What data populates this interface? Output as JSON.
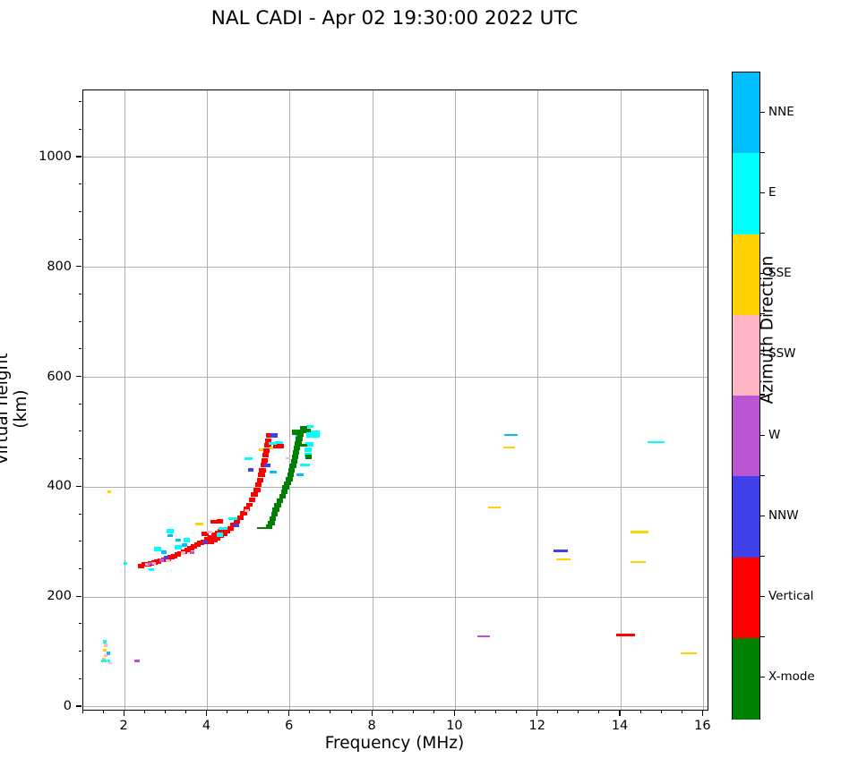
{
  "title": "NAL CADI - Apr 02 19:30:00 2022 UTC",
  "chart_data": {
    "type": "scatter",
    "title": "NAL CADI - Apr 02 19:30:00 2022 UTC",
    "xlabel": "Frequency (MHz)",
    "ylabel": "Virtual height (km)",
    "xlim": [
      1.0,
      16.1
    ],
    "ylim": [
      -5,
      1122
    ],
    "xticks": [
      2,
      4,
      6,
      8,
      10,
      12,
      14,
      16
    ],
    "yticks": [
      0,
      200,
      400,
      600,
      800,
      1000
    ],
    "x_minor_step": 0.5,
    "y_minor_step": 50,
    "grid": true,
    "grid_color": "#b0b0b0",
    "legend_position": "right-colorbar",
    "colorbar": {
      "label": "Azimuth Direction",
      "categories_top_to_bottom": [
        {
          "code": "NNE",
          "label": "NNE",
          "color": "#00BFFF"
        },
        {
          "code": "E",
          "label": "E",
          "color": "#00FFFF"
        },
        {
          "code": "SSE",
          "label": "SSE",
          "color": "#FFD200"
        },
        {
          "code": "SSW",
          "label": "SSW",
          "color": "#FFB5C5"
        },
        {
          "code": "W",
          "label": "W",
          "color": "#BA55D3"
        },
        {
          "code": "NNW",
          "label": "NNW",
          "color": "#4040E8"
        },
        {
          "code": "V",
          "label": "Vertical",
          "color": "#FF0000"
        },
        {
          "code": "X",
          "label": "X-mode",
          "color": "#008000"
        }
      ]
    },
    "point_format": "[frequency_MHz, virtual_height_km, direction_code, width_MHz(optional), thickness_km(optional)]",
    "default_marker": {
      "width_MHz": 0.16,
      "thickness_km": 8
    },
    "points": [
      [
        2.4,
        257,
        "V"
      ],
      [
        2.48,
        259,
        "V"
      ],
      [
        2.56,
        260,
        "V"
      ],
      [
        2.64,
        262,
        "V"
      ],
      [
        2.72,
        263,
        "V"
      ],
      [
        2.8,
        265,
        "V"
      ],
      [
        2.88,
        267,
        "V"
      ],
      [
        2.96,
        268,
        "V"
      ],
      [
        3.04,
        270,
        "V"
      ],
      [
        3.12,
        272,
        "V"
      ],
      [
        3.2,
        275,
        "V"
      ],
      [
        3.28,
        277,
        "V"
      ],
      [
        3.36,
        280,
        "V"
      ],
      [
        3.44,
        283,
        "V"
      ],
      [
        3.52,
        286,
        "V"
      ],
      [
        3.6,
        289,
        "V"
      ],
      [
        3.68,
        292,
        "V"
      ],
      [
        3.76,
        295,
        "V"
      ],
      [
        3.84,
        298,
        "V"
      ],
      [
        3.92,
        301,
        "V"
      ],
      [
        4.0,
        305,
        "V"
      ],
      [
        4.08,
        300,
        "V"
      ],
      [
        4.1,
        309,
        "V"
      ],
      [
        4.16,
        303,
        "V"
      ],
      [
        4.18,
        313,
        "V"
      ],
      [
        4.24,
        307,
        "V"
      ],
      [
        4.26,
        317,
        "V"
      ],
      [
        4.32,
        311,
        "V"
      ],
      [
        4.34,
        320,
        "V"
      ],
      [
        4.4,
        315,
        "V"
      ],
      [
        4.48,
        320,
        "V"
      ],
      [
        4.56,
        325,
        "V"
      ],
      [
        4.64,
        331,
        "V"
      ],
      [
        4.72,
        337,
        "V"
      ],
      [
        4.8,
        344,
        "V"
      ],
      [
        4.88,
        352,
        "V"
      ],
      [
        4.95,
        360,
        "V"
      ],
      [
        5.02,
        368,
        "V"
      ],
      [
        5.08,
        377,
        "V"
      ],
      [
        5.14,
        386,
        "V"
      ],
      [
        5.2,
        395,
        "V"
      ],
      [
        5.24,
        404,
        "V"
      ],
      [
        5.28,
        413,
        "V"
      ],
      [
        5.31,
        422,
        "V"
      ],
      [
        5.33,
        431,
        "V"
      ],
      [
        5.36,
        440,
        "V"
      ],
      [
        5.39,
        449,
        "V"
      ],
      [
        5.41,
        458,
        "V"
      ],
      [
        5.43,
        467,
        "V"
      ],
      [
        5.46,
        476,
        "V"
      ],
      [
        5.48,
        485,
        "V"
      ],
      [
        5.5,
        494,
        "V"
      ],
      [
        5.68,
        475,
        "V"
      ],
      [
        5.78,
        475,
        "V"
      ],
      [
        4.15,
        337,
        "V"
      ],
      [
        4.3,
        338,
        "V"
      ],
      [
        3.95,
        315,
        "V"
      ],
      [
        14.12,
        131,
        "V",
        0.45,
        4.5
      ],
      [
        2.02,
        262,
        "E",
        0.1,
        5
      ],
      [
        2.65,
        250,
        "E",
        0.12,
        4
      ],
      [
        2.8,
        287,
        "E"
      ],
      [
        3.1,
        320,
        "E"
      ],
      [
        3.3,
        290,
        "E"
      ],
      [
        3.5,
        303,
        "E"
      ],
      [
        4.3,
        314,
        "E"
      ],
      [
        4.38,
        325,
        "E",
        0.22,
        5
      ],
      [
        4.62,
        342,
        "E",
        0.2,
        5
      ],
      [
        5.0,
        452,
        "E",
        0.2,
        5
      ],
      [
        5.58,
        480,
        "E",
        0.2,
        5
      ],
      [
        5.74,
        481,
        "E",
        0.2,
        5
      ],
      [
        6.37,
        440,
        "E",
        0.24,
        5
      ],
      [
        6.44,
        458,
        "E"
      ],
      [
        6.44,
        468,
        "E"
      ],
      [
        6.47,
        478,
        "E",
        0.2,
        7
      ],
      [
        6.56,
        496,
        "E",
        0.32,
        13
      ],
      [
        6.48,
        510,
        "E",
        0.18,
        5
      ],
      [
        14.85,
        482,
        "E",
        0.4,
        4
      ],
      [
        1.52,
        119,
        "E",
        0.1,
        6
      ],
      [
        1.5,
        84,
        "E",
        0.14,
        5
      ],
      [
        1.62,
        84,
        "E",
        0.08,
        5
      ],
      [
        2.95,
        282,
        "NNE",
        0.12,
        6
      ],
      [
        3.3,
        303,
        "NNE",
        0.12,
        5
      ],
      [
        3.45,
        295,
        "NNE",
        0.14,
        6
      ],
      [
        3.1,
        312,
        "NNE",
        0.12,
        5
      ],
      [
        5.6,
        428,
        "NNE",
        0.18,
        5
      ],
      [
        6.2,
        493,
        "NNE",
        0.14,
        7
      ],
      [
        6.25,
        422,
        "NNE",
        0.18,
        5
      ],
      [
        11.35,
        495,
        "NNE",
        0.32,
        4
      ],
      [
        1.6,
        98,
        "NNE",
        0.08,
        6
      ],
      [
        1.63,
        392,
        "SSE",
        0.08,
        5
      ],
      [
        1.52,
        103,
        "SSE",
        0.09,
        5
      ],
      [
        1.5,
        88,
        "SSE",
        0.08,
        4
      ],
      [
        3.8,
        333,
        "SSE",
        0.2,
        4
      ],
      [
        5.3,
        468,
        "SSE",
        0.12,
        4
      ],
      [
        5.55,
        471,
        "SSE",
        0.1,
        4
      ],
      [
        10.95,
        363,
        "SSE",
        0.3,
        4
      ],
      [
        11.3,
        472,
        "SSE",
        0.3,
        2.5
      ],
      [
        12.62,
        268,
        "SSE",
        0.35,
        3
      ],
      [
        14.45,
        318,
        "SSE",
        0.42,
        5
      ],
      [
        14.42,
        264,
        "SSE",
        0.38,
        2.5
      ],
      [
        15.65,
        97,
        "SSE",
        0.4,
        2.5
      ],
      [
        2.55,
        259,
        "SSW",
        0.1,
        5
      ],
      [
        2.7,
        262,
        "SSW",
        0.1,
        5
      ],
      [
        3.05,
        266,
        "SSW",
        0.1,
        5
      ],
      [
        3.42,
        280,
        "SSW",
        0.1,
        5
      ],
      [
        4.05,
        318,
        "SSW",
        0.12,
        5
      ],
      [
        4.95,
        357,
        "SSW",
        0.12,
        5
      ],
      [
        5.95,
        453,
        "SSW",
        0.12,
        4
      ],
      [
        1.54,
        112,
        "SSW",
        0.09,
        6
      ],
      [
        1.54,
        93,
        "SSW",
        0.09,
        5
      ],
      [
        1.65,
        80,
        "SSW",
        0.08,
        4
      ],
      [
        2.62,
        261,
        "W",
        0.1,
        5
      ],
      [
        2.9,
        267,
        "W",
        0.1,
        5
      ],
      [
        3.63,
        281,
        "W",
        0.1,
        5
      ],
      [
        2.3,
        83,
        "W",
        0.12,
        5
      ],
      [
        10.68,
        128,
        "W",
        0.3,
        3.5
      ],
      [
        3.0,
        272,
        "NNW",
        0.12,
        6
      ],
      [
        3.95,
        300,
        "NNW",
        0.12,
        5
      ],
      [
        4.7,
        330,
        "NNW",
        0.14,
        6
      ],
      [
        5.05,
        432,
        "NNW",
        0.14,
        7
      ],
      [
        5.45,
        440,
        "NNW",
        0.14,
        7
      ],
      [
        5.62,
        494,
        "NNW",
        0.18,
        8
      ],
      [
        12.55,
        284,
        "NNW",
        0.35,
        4
      ],
      [
        5.3,
        326,
        "X",
        0.2,
        2.5
      ],
      [
        5.38,
        326,
        "X",
        0.22,
        3
      ],
      [
        5.5,
        328,
        "X"
      ],
      [
        5.55,
        335,
        "X"
      ],
      [
        5.58,
        343,
        "X"
      ],
      [
        5.62,
        351,
        "X"
      ],
      [
        5.66,
        359,
        "X"
      ],
      [
        5.7,
        367,
        "X"
      ],
      [
        5.76,
        375,
        "X"
      ],
      [
        5.82,
        383,
        "X"
      ],
      [
        5.86,
        391,
        "X"
      ],
      [
        5.9,
        399,
        "X"
      ],
      [
        5.94,
        407,
        "X"
      ],
      [
        5.98,
        415,
        "X"
      ],
      [
        6.01,
        423,
        "X"
      ],
      [
        6.04,
        431,
        "X"
      ],
      [
        6.07,
        439,
        "X"
      ],
      [
        6.1,
        447,
        "X"
      ],
      [
        6.12,
        455,
        "X"
      ],
      [
        6.15,
        463,
        "X"
      ],
      [
        6.17,
        471,
        "X"
      ],
      [
        6.2,
        479,
        "X"
      ],
      [
        6.22,
        487,
        "X"
      ],
      [
        6.26,
        495,
        "X"
      ],
      [
        6.15,
        500,
        "X",
        0.2,
        10
      ],
      [
        6.32,
        502,
        "X"
      ],
      [
        6.4,
        503,
        "X",
        0.2,
        6
      ],
      [
        6.45,
        455,
        "X"
      ],
      [
        6.32,
        477,
        "X",
        0.18,
        5
      ],
      [
        6.33,
        508,
        "X",
        0.16,
        5
      ]
    ]
  }
}
